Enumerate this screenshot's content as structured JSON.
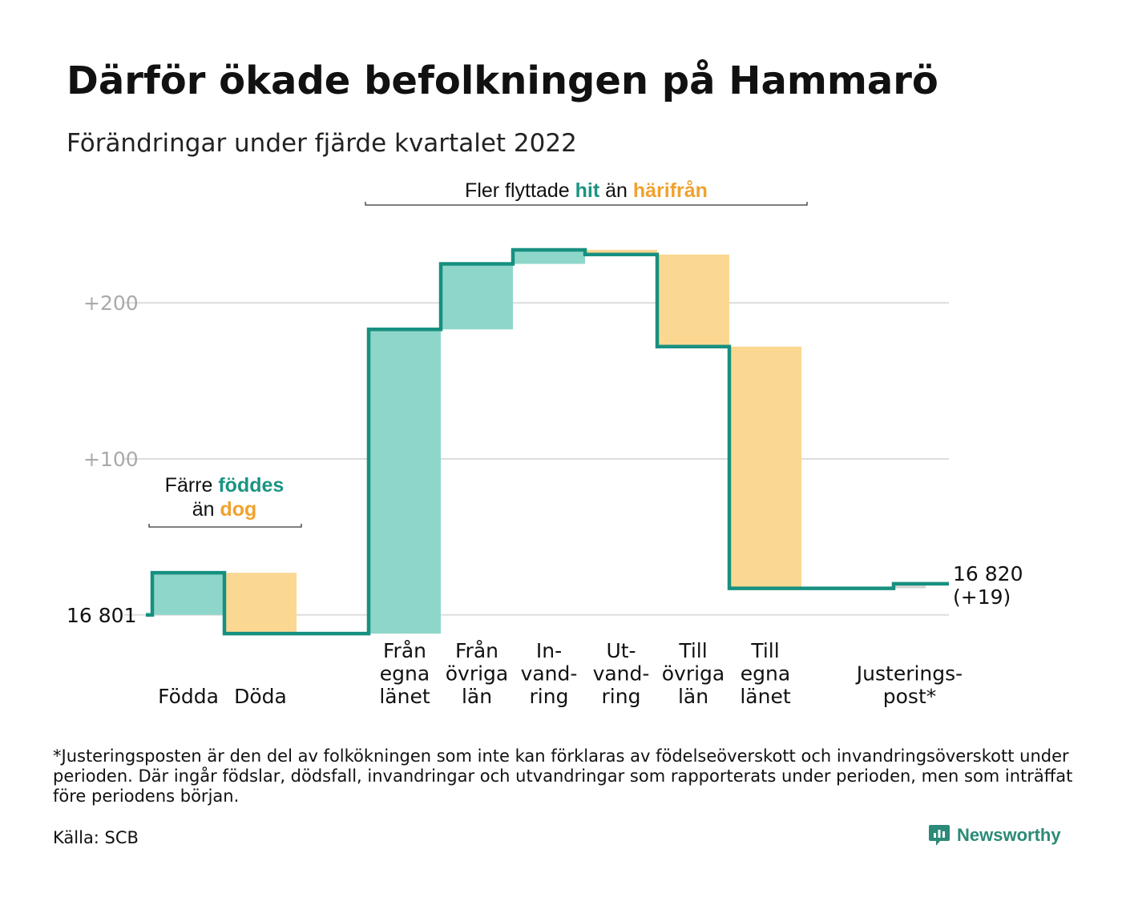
{
  "title": "Därför ökade befolkningen på Hammarö",
  "subtitle": "Förändringar under fjärde kvartalet 2022",
  "chart_data": {
    "type": "waterfall",
    "baseline": 16801,
    "baseline_label": "16 801",
    "yticks": [
      {
        "value": 100,
        "label": "+100"
      },
      {
        "value": 200,
        "label": "+200"
      }
    ],
    "ylim": [
      -15,
      235
    ],
    "categories": [
      {
        "label": [
          "Födda"
        ],
        "change": 27
      },
      {
        "label": [
          "Döda"
        ],
        "change": -39
      },
      {
        "label": [],
        "change": 0
      },
      {
        "label": [
          "Från",
          "egna",
          "länet"
        ],
        "change": 195
      },
      {
        "label": [
          "Från",
          "övriga",
          "län"
        ],
        "change": 42
      },
      {
        "label": [
          "In-",
          "vand-",
          "ring"
        ],
        "change": 9
      },
      {
        "label": [
          "Ut-",
          "vand-",
          "ring"
        ],
        "change": -3
      },
      {
        "label": [
          "Till",
          "övriga",
          "län"
        ],
        "change": -59
      },
      {
        "label": [
          "Till",
          "egna",
          "länet"
        ],
        "change": -155
      },
      {
        "label": [],
        "change": 0
      },
      {
        "label": [
          "Justerings-",
          "post*"
        ],
        "change": 3
      }
    ],
    "end_value_label": "16 820",
    "end_change_label": "(+19)",
    "annotations": [
      {
        "lines": [
          [
            {
              "text": "Färre ",
              "style": "plain"
            },
            {
              "text": "föddes",
              "style": "increase"
            }
          ],
          [
            {
              "text": "än ",
              "style": "plain"
            },
            {
              "text": "dog",
              "style": "decrease"
            }
          ]
        ]
      },
      {
        "lines": [
          [
            {
              "text": "Fler flyttade ",
              "style": "plain"
            },
            {
              "text": "hit",
              "style": "increase"
            },
            {
              "text": " än ",
              "style": "plain"
            },
            {
              "text": "härifrån",
              "style": "decrease"
            }
          ]
        ]
      }
    ],
    "colors": {
      "increase_fill": "#8fd6ca",
      "decrease_fill": "#fad892",
      "line": "#179080",
      "increase_text": "#1b9482",
      "decrease_text": "#f0a22e",
      "grid": "#dddddd",
      "tick_text": "#aaaaaa",
      "adjustment_fill": "#d6d6d6"
    }
  },
  "footnote": "*Justeringsposten är den del av folkökningen som inte kan förklaras av födelseöverskott och invandringsöverskott under perioden. Där ingår födslar, dödsfall, invandringar och utvandringar som rapporterats under perioden, men som inträffat före periodens början.",
  "source": "Källa: SCB",
  "brand": {
    "name": "Newsworthy",
    "icon": "newsworthy-logo-icon"
  }
}
